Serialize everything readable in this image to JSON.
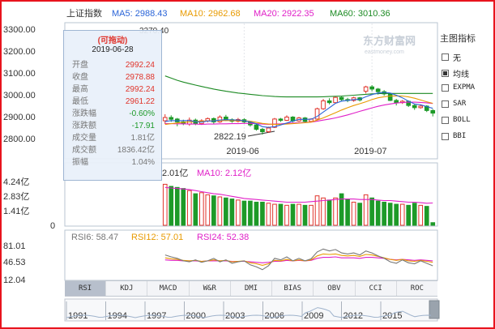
{
  "header": {
    "index_name": "上证指数",
    "ma_items": [
      {
        "label": "MA5: 2988.43",
        "color": "#2a64d8"
      },
      {
        "label": "MA10: 2962.68",
        "color": "#e89a00"
      },
      {
        "label": "MA20: 2922.35",
        "color": "#e020c8"
      },
      {
        "label": "MA60: 3010.36",
        "color": "#1c8a23"
      }
    ]
  },
  "watermark": "东方财富网",
  "watermark_sub": "eastmoney.com",
  "price_axis": {
    "ticks": [
      "3300.00",
      "3200.00",
      "3100.00",
      "3000.00",
      "2900.00",
      "2800.00"
    ],
    "values": [
      3300,
      3200,
      3100,
      3000,
      2900,
      2800
    ]
  },
  "date_labels": [
    {
      "text": "2019-06",
      "index": 13
    },
    {
      "text": "2019-07",
      "index": 34
    }
  ],
  "annotations": {
    "low_label": "2822.19",
    "high_label_partial": "3270.40"
  },
  "tooltip": {
    "title": "(可拖动)",
    "date": "2019-06-28",
    "rows": [
      {
        "label": "开盘",
        "value": "2992.24",
        "tone": "red"
      },
      {
        "label": "收盘",
        "value": "2978.88",
        "tone": "red"
      },
      {
        "label": "最高",
        "value": "2992.24",
        "tone": "red"
      },
      {
        "label": "最低",
        "value": "2961.22",
        "tone": "red"
      },
      {
        "label": "涨跌幅",
        "value": "-0.60%",
        "tone": "green"
      },
      {
        "label": "涨跌额",
        "value": "-17.91",
        "tone": "green"
      },
      {
        "label": "成交量",
        "value": "1.81亿",
        "tone": "gray"
      },
      {
        "label": "成交额",
        "value": "1836.42亿",
        "tone": "gray"
      },
      {
        "label": "振幅",
        "value": "1.04%",
        "tone": "gray"
      }
    ]
  },
  "volume_panel": {
    "legend": [
      {
        "label": "2.01亿",
        "color": "#333"
      },
      {
        "label": "MA10: 2.12亿",
        "color": "#e020c8"
      }
    ],
    "ticks": [
      "4.24亿",
      "2.83亿",
      "1.41亿",
      "0"
    ]
  },
  "rsi_panel": {
    "legend": [
      {
        "label": "RSI6: 58.47",
        "color": "#777"
      },
      {
        "label": "RSI12: 57.01",
        "color": "#e89a00"
      },
      {
        "label": "RSI24: 52.38",
        "color": "#e020c8"
      }
    ],
    "ticks": [
      "81.01",
      "46.53",
      "12.04"
    ]
  },
  "tabs": [
    "RSI",
    "KDJ",
    "MACD",
    "W&R",
    "DMI",
    "BIAS",
    "OBV",
    "CCI",
    "ROC"
  ],
  "active_tab": "RSI",
  "timeline": {
    "years": [
      "1991",
      "1994",
      "1997",
      "2000",
      "2003",
      "2006",
      "2009",
      "2012",
      "2015"
    ]
  },
  "sidebar": {
    "title": "主图指标",
    "items": [
      {
        "label": "无",
        "checked": false
      },
      {
        "label": "均线",
        "checked": true
      },
      {
        "label": "EXPMA",
        "checked": false
      },
      {
        "label": "SAR",
        "checked": false
      },
      {
        "label": "BOLL",
        "checked": false
      },
      {
        "label": "BBI",
        "checked": false
      }
    ]
  },
  "chart_data": {
    "type": "candlestick",
    "ylim": [
      2780,
      3300
    ],
    "candles": [
      {
        "o": 2885,
        "c": 2900,
        "h": 2915,
        "l": 2870
      },
      {
        "o": 2900,
        "c": 2892,
        "h": 2910,
        "l": 2880
      },
      {
        "o": 2893,
        "c": 2880,
        "h": 2898,
        "l": 2860
      },
      {
        "o": 2880,
        "c": 2872,
        "h": 2890,
        "l": 2865
      },
      {
        "o": 2870,
        "c": 2888,
        "h": 2900,
        "l": 2862
      },
      {
        "o": 2888,
        "c": 2872,
        "h": 2895,
        "l": 2865
      },
      {
        "o": 2872,
        "c": 2885,
        "h": 2892,
        "l": 2866
      },
      {
        "o": 2885,
        "c": 2895,
        "h": 2900,
        "l": 2878
      },
      {
        "o": 2895,
        "c": 2880,
        "h": 2900,
        "l": 2872
      },
      {
        "o": 2880,
        "c": 2902,
        "h": 2910,
        "l": 2876
      },
      {
        "o": 2902,
        "c": 2890,
        "h": 2912,
        "l": 2884
      },
      {
        "o": 2890,
        "c": 2883,
        "h": 2896,
        "l": 2876
      },
      {
        "o": 2883,
        "c": 2891,
        "h": 2898,
        "l": 2877
      },
      {
        "o": 2890,
        "c": 2880,
        "h": 2896,
        "l": 2872
      },
      {
        "o": 2880,
        "c": 2866,
        "h": 2884,
        "l": 2858
      },
      {
        "o": 2866,
        "c": 2846,
        "h": 2870,
        "l": 2840
      },
      {
        "o": 2846,
        "c": 2835,
        "h": 2852,
        "l": 2822
      },
      {
        "o": 2835,
        "c": 2852,
        "h": 2858,
        "l": 2830
      },
      {
        "o": 2855,
        "c": 2893,
        "h": 2898,
        "l": 2852
      },
      {
        "o": 2893,
        "c": 2887,
        "h": 2898,
        "l": 2880
      },
      {
        "o": 2887,
        "c": 2902,
        "h": 2910,
        "l": 2884
      },
      {
        "o": 2902,
        "c": 2884,
        "h": 2906,
        "l": 2878
      },
      {
        "o": 2884,
        "c": 2898,
        "h": 2903,
        "l": 2880
      },
      {
        "o": 2898,
        "c": 2882,
        "h": 2902,
        "l": 2876
      },
      {
        "o": 2882,
        "c": 2893,
        "h": 2897,
        "l": 2878
      },
      {
        "o": 2893,
        "c": 2940,
        "h": 2945,
        "l": 2890
      },
      {
        "o": 2940,
        "c": 2976,
        "h": 2985,
        "l": 2935
      },
      {
        "o": 2976,
        "c": 2968,
        "h": 2988,
        "l": 2960
      },
      {
        "o": 2968,
        "c": 2992,
        "h": 2998,
        "l": 2965
      },
      {
        "o": 2992,
        "c": 2982,
        "h": 2996,
        "l": 2974
      },
      {
        "o": 2982,
        "c": 2978,
        "h": 2990,
        "l": 2970
      },
      {
        "o": 2978,
        "c": 2990,
        "h": 2995,
        "l": 2972
      },
      {
        "o": 2990,
        "c": 2980,
        "h": 2994,
        "l": 2973
      },
      {
        "o": 3020,
        "c": 3040,
        "h": 3045,
        "l": 3010
      },
      {
        "o": 3040,
        "c": 3030,
        "h": 3048,
        "l": 3020
      },
      {
        "o": 3030,
        "c": 3018,
        "h": 3035,
        "l": 3005
      },
      {
        "o": 3018,
        "c": 3008,
        "h": 3025,
        "l": 3000
      },
      {
        "o": 3008,
        "c": 2978,
        "h": 3012,
        "l": 2975
      },
      {
        "o": 2978,
        "c": 2968,
        "h": 2985,
        "l": 2955
      },
      {
        "o": 2968,
        "c": 2974,
        "h": 2980,
        "l": 2962
      },
      {
        "o": 2974,
        "c": 2955,
        "h": 2978,
        "l": 2948
      },
      {
        "o": 2955,
        "c": 2945,
        "h": 2960,
        "l": 2935
      },
      {
        "o": 2945,
        "c": 2952,
        "h": 2960,
        "l": 2940
      },
      {
        "o": 2952,
        "c": 2932,
        "h": 2956,
        "l": 2925
      },
      {
        "o": 2932,
        "c": 2920,
        "h": 2938,
        "l": 2905
      }
    ],
    "ma5": [
      2882,
      2886,
      2885,
      2886,
      2886,
      2881,
      2879,
      2884,
      2884,
      2888,
      2890,
      2889,
      2888,
      2885,
      2880,
      2871,
      2858,
      2855,
      2858,
      2866,
      2875,
      2884,
      2891,
      2892,
      2892,
      2905,
      2925,
      2945,
      2965,
      2975,
      2978,
      2982,
      2983,
      2995,
      3005,
      3012,
      3015,
      3012,
      3002,
      2990,
      2975,
      2962,
      2958,
      2950,
      2942
    ],
    "ma10": [
      2868,
      2872,
      2875,
      2878,
      2880,
      2882,
      2883,
      2884,
      2885,
      2886,
      2886,
      2886,
      2885,
      2885,
      2883,
      2878,
      2873,
      2870,
      2869,
      2869,
      2870,
      2872,
      2874,
      2876,
      2879,
      2888,
      2898,
      2910,
      2922,
      2934,
      2945,
      2955,
      2963,
      2972,
      2982,
      2990,
      2995,
      2998,
      2999,
      2998,
      2994,
      2988,
      2980,
      2972,
      2965
    ],
    "ma20": [
      2872,
      2872,
      2871,
      2871,
      2870,
      2870,
      2869,
      2870,
      2870,
      2871,
      2871,
      2872,
      2872,
      2873,
      2873,
      2872,
      2870,
      2869,
      2870,
      2871,
      2873,
      2875,
      2876,
      2877,
      2879,
      2883,
      2888,
      2893,
      2898,
      2905,
      2912,
      2920,
      2928,
      2936,
      2944,
      2951,
      2957,
      2962,
      2966,
      2969,
      2970,
      2970,
      2969,
      2967,
      2964
    ],
    "ma60": [
      3090,
      3080,
      3070,
      3062,
      3055,
      3048,
      3042,
      3036,
      3030,
      3025,
      3020,
      3016,
      3012,
      3009,
      3006,
      3003,
      3000,
      2998,
      2996,
      2995,
      2994,
      2994,
      2994,
      2994,
      2994,
      2994,
      2995,
      2996,
      2997,
      2998,
      3000,
      3002,
      3004,
      3006,
      3008,
      3009,
      3010,
      3010,
      3010,
      3010,
      3010,
      3010,
      3010,
      3010,
      3010
    ],
    "volume_ylim": [
      0,
      4.24
    ],
    "volume": [
      3.9,
      3.7,
      3.6,
      3.5,
      3.3,
      3.0,
      3.1,
      2.9,
      2.8,
      2.7,
      2.6,
      2.5,
      2.4,
      2.3,
      2.3,
      2.2,
      2.2,
      2.1,
      2.0,
      2.0,
      1.9,
      2.0,
      2.0,
      1.9,
      1.9,
      2.8,
      2.6,
      2.4,
      2.6,
      3.0,
      2.5,
      2.2,
      2.1,
      2.9,
      2.6,
      2.3,
      2.2,
      2.1,
      2.0,
      2.0,
      1.9,
      2.1,
      1.9,
      1.8,
      0.25
    ],
    "volume_ma10": [
      3.6,
      3.55,
      3.5,
      3.45,
      3.4,
      3.3,
      3.2,
      3.1,
      3.0,
      2.95,
      2.85,
      2.75,
      2.65,
      2.55,
      2.5,
      2.45,
      2.4,
      2.35,
      2.3,
      2.25,
      2.2,
      2.2,
      2.2,
      2.2,
      2.25,
      2.3,
      2.35,
      2.4,
      2.45,
      2.5,
      2.5,
      2.5,
      2.45,
      2.45,
      2.45,
      2.4,
      2.35,
      2.35,
      2.3,
      2.25,
      2.2,
      2.2,
      2.15,
      2.1,
      2.12
    ],
    "rsi_ylim": [
      12.04,
      81.01
    ],
    "rsi6": [
      62,
      58,
      55,
      50,
      48,
      52,
      47,
      50,
      55,
      48,
      52,
      45,
      48,
      50,
      42,
      38,
      32,
      40,
      55,
      52,
      58,
      50,
      55,
      50,
      54,
      68,
      74,
      70,
      73,
      66,
      64,
      66,
      62,
      70,
      66,
      60,
      55,
      48,
      45,
      52,
      46,
      44,
      50,
      45,
      40
    ],
    "rsi12": [
      56,
      54,
      53,
      51,
      50,
      51,
      49,
      50,
      52,
      50,
      51,
      48,
      49,
      50,
      46,
      44,
      41,
      44,
      51,
      50,
      53,
      50,
      52,
      50,
      52,
      60,
      64,
      63,
      64,
      61,
      60,
      61,
      59,
      63,
      62,
      59,
      56,
      53,
      51,
      53,
      50,
      49,
      51,
      49,
      47
    ],
    "rsi24": [
      52,
      51,
      51,
      50,
      50,
      50,
      49,
      50,
      50,
      50,
      50,
      49,
      49,
      49,
      48,
      47,
      46,
      47,
      49,
      49,
      51,
      50,
      51,
      50,
      51,
      55,
      57,
      57,
      58,
      56,
      56,
      56,
      55,
      57,
      57,
      56,
      55,
      53,
      52,
      53,
      52,
      51,
      52,
      51,
      50
    ]
  }
}
